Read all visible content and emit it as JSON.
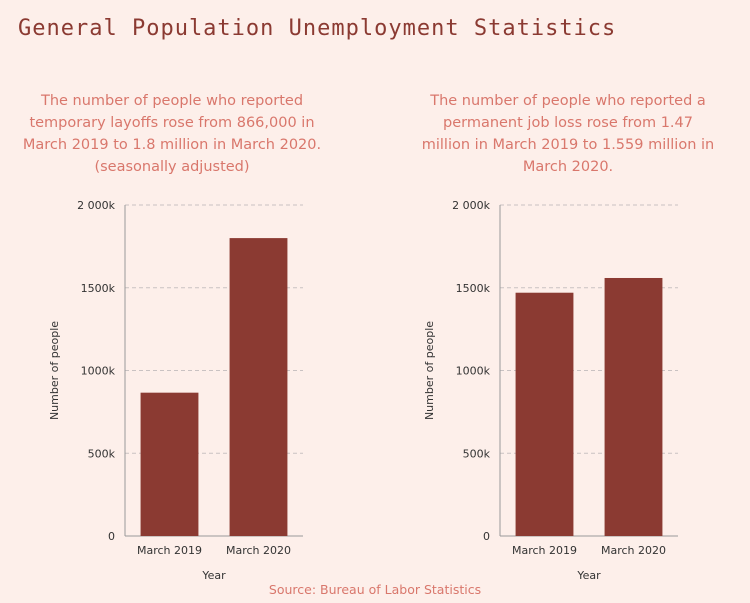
{
  "title": "General Population Unemployment Statistics",
  "source": "Source: Bureau of Labor Statistics",
  "colors": {
    "background": "#fdefea",
    "bar": "#8b3a32",
    "title": "#8b3a32",
    "caption": "#d9776c",
    "grid": "#c9c2c2"
  },
  "chart_data": [
    {
      "type": "bar",
      "title": "The number of people who reported temporary layoffs rose from 866,000 in March 2019 to 1.8 million in March 2020. (seasonally adjusted)",
      "xlabel": "Year",
      "ylabel": "Number of people",
      "categories": [
        "March 2019",
        "March 2020"
      ],
      "values": [
        866,
        1800
      ],
      "ylim": [
        0,
        2000
      ],
      "yticks": [
        0,
        500,
        1000,
        1500,
        2000
      ],
      "ytick_labels": [
        "0",
        "500k",
        "1000k",
        "1500k",
        "2 000k"
      ],
      "grid": true
    },
    {
      "type": "bar",
      "title": "The number of people who reported a permanent job loss rose from 1.47 million in March 2019 to 1.559 million in March 2020.",
      "xlabel": "Year",
      "ylabel": "Number of people",
      "categories": [
        "March 2019",
        "March 2020"
      ],
      "values": [
        1470,
        1559
      ],
      "ylim": [
        0,
        2000
      ],
      "yticks": [
        0,
        500,
        1000,
        1500,
        2000
      ],
      "ytick_labels": [
        "0",
        "500k",
        "1000k",
        "1500k",
        "2 000k"
      ],
      "grid": true
    }
  ]
}
